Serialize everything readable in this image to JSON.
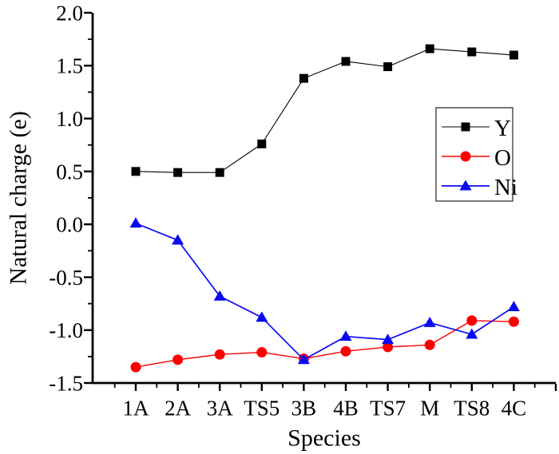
{
  "figure": {
    "background": "#ffffff",
    "axis_color": "#000000"
  },
  "chart_data": {
    "type": "line",
    "title": "",
    "xlabel": "Species",
    "ylabel": "Natural charge (e)",
    "categories": [
      "1A",
      "2A",
      "3A",
      "TS5",
      "3B",
      "4B",
      "TS7",
      "M",
      "TS8",
      "4C"
    ],
    "ylim": [
      -1.5,
      2.0
    ],
    "ytick_step": 0.5,
    "yminor_step": 0.25,
    "ytick_labels": [
      "-1.5",
      "-1.0",
      "-0.5",
      "0.0",
      "0.5",
      "1.0",
      "1.5",
      "2.0"
    ],
    "grid": false,
    "series": [
      {
        "name": "Y",
        "color": "#000000",
        "marker": "square",
        "values": [
          0.5,
          0.49,
          0.49,
          0.76,
          1.38,
          1.54,
          1.49,
          1.66,
          1.63,
          1.6
        ]
      },
      {
        "name": "O",
        "color": "#fc0000",
        "marker": "circle",
        "values": [
          -1.35,
          -1.28,
          -1.23,
          -1.21,
          -1.27,
          -1.2,
          -1.16,
          -1.14,
          -0.91,
          -0.92
        ]
      },
      {
        "name": "Ni",
        "color": "#0b0bf2",
        "marker": "triangle",
        "values": [
          0.01,
          -0.15,
          -0.68,
          -0.88,
          -1.28,
          -1.06,
          -1.09,
          -0.93,
          -1.04,
          -0.78
        ]
      }
    ],
    "legend": {
      "entries": [
        "Y",
        "O",
        "Ni"
      ],
      "position": "right-center",
      "border_color": "#4f4f4f",
      "background": "#ffffff"
    }
  }
}
